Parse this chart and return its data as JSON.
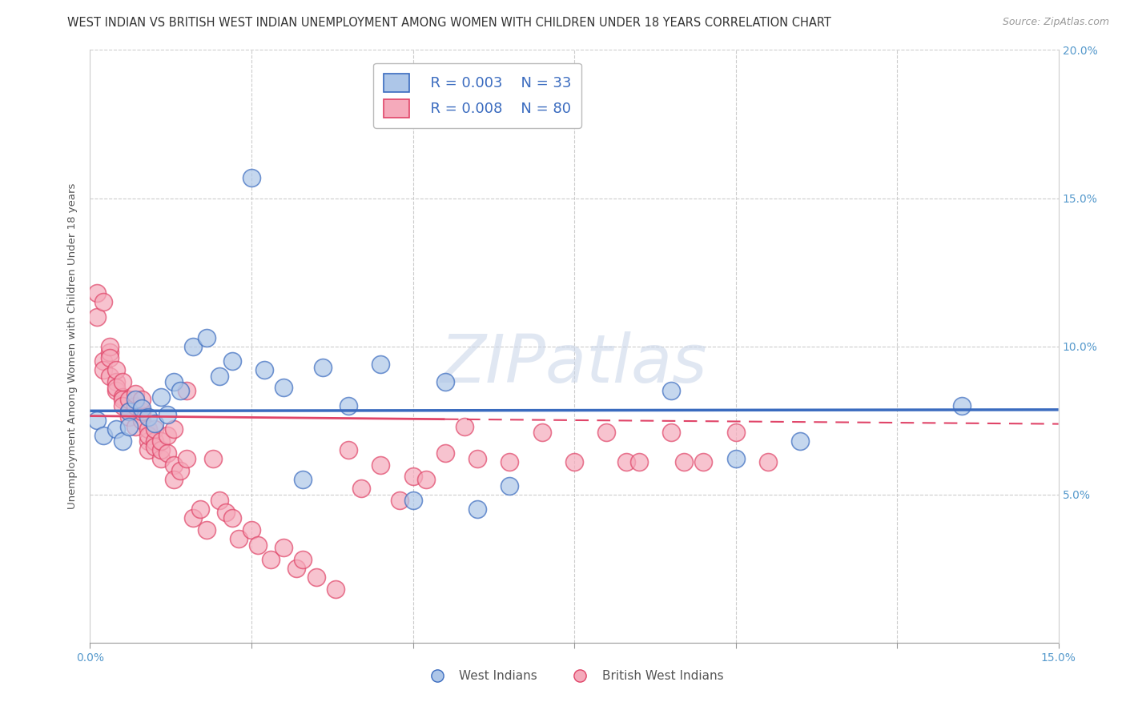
{
  "title": "WEST INDIAN VS BRITISH WEST INDIAN UNEMPLOYMENT AMONG WOMEN WITH CHILDREN UNDER 18 YEARS CORRELATION CHART",
  "source": "Source: ZipAtlas.com",
  "ylabel": "Unemployment Among Women with Children Under 18 years",
  "xlim": [
    0.0,
    0.15
  ],
  "ylim": [
    0.0,
    0.2
  ],
  "background_color": "#ffffff",
  "watermark_text": "ZIPatlas",
  "legend_r1": "R = 0.003",
  "legend_n1": "N = 33",
  "legend_r2": "R = 0.008",
  "legend_n2": "N = 80",
  "blue_fill": "#adc6e8",
  "pink_fill": "#f5aabb",
  "blue_edge": "#3a6bbf",
  "pink_edge": "#e04468",
  "grid_color": "#cccccc",
  "title_color": "#333333",
  "tick_color": "#5599cc",
  "ylabel_color": "#555555",
  "title_fontsize": 10.5,
  "axis_label_fontsize": 9.5,
  "tick_fontsize": 10,
  "legend_fontsize": 13,
  "watermark_fontsize": 60,
  "source_fontsize": 9,
  "wi_x": [
    0.001,
    0.002,
    0.004,
    0.005,
    0.006,
    0.006,
    0.007,
    0.008,
    0.009,
    0.01,
    0.011,
    0.012,
    0.013,
    0.014,
    0.016,
    0.018,
    0.02,
    0.022,
    0.025,
    0.027,
    0.03,
    0.033,
    0.036,
    0.04,
    0.045,
    0.05,
    0.055,
    0.06,
    0.065,
    0.09,
    0.1,
    0.11,
    0.135
  ],
  "wi_y": [
    0.075,
    0.07,
    0.072,
    0.068,
    0.078,
    0.073,
    0.082,
    0.079,
    0.076,
    0.074,
    0.083,
    0.077,
    0.088,
    0.085,
    0.1,
    0.103,
    0.09,
    0.095,
    0.157,
    0.092,
    0.086,
    0.055,
    0.093,
    0.08,
    0.094,
    0.048,
    0.088,
    0.045,
    0.053,
    0.085,
    0.062,
    0.068,
    0.08
  ],
  "bwi_x": [
    0.001,
    0.001,
    0.002,
    0.002,
    0.002,
    0.003,
    0.003,
    0.003,
    0.003,
    0.004,
    0.004,
    0.004,
    0.004,
    0.005,
    0.005,
    0.005,
    0.005,
    0.006,
    0.006,
    0.006,
    0.007,
    0.007,
    0.007,
    0.008,
    0.008,
    0.008,
    0.009,
    0.009,
    0.009,
    0.009,
    0.01,
    0.01,
    0.01,
    0.011,
    0.011,
    0.011,
    0.012,
    0.012,
    0.013,
    0.013,
    0.013,
    0.014,
    0.015,
    0.015,
    0.016,
    0.017,
    0.018,
    0.019,
    0.02,
    0.021,
    0.022,
    0.023,
    0.025,
    0.026,
    0.028,
    0.03,
    0.032,
    0.033,
    0.035,
    0.038,
    0.04,
    0.042,
    0.045,
    0.048,
    0.05,
    0.052,
    0.055,
    0.058,
    0.06,
    0.065,
    0.07,
    0.075,
    0.08,
    0.083,
    0.085,
    0.09,
    0.092,
    0.095,
    0.1,
    0.105
  ],
  "bwi_y": [
    0.118,
    0.11,
    0.115,
    0.095,
    0.092,
    0.098,
    0.1,
    0.096,
    0.09,
    0.088,
    0.085,
    0.092,
    0.086,
    0.083,
    0.082,
    0.08,
    0.088,
    0.078,
    0.082,
    0.076,
    0.08,
    0.084,
    0.073,
    0.075,
    0.078,
    0.082,
    0.068,
    0.072,
    0.065,
    0.07,
    0.068,
    0.072,
    0.066,
    0.062,
    0.065,
    0.068,
    0.064,
    0.07,
    0.06,
    0.072,
    0.055,
    0.058,
    0.085,
    0.062,
    0.042,
    0.045,
    0.038,
    0.062,
    0.048,
    0.044,
    0.042,
    0.035,
    0.038,
    0.033,
    0.028,
    0.032,
    0.025,
    0.028,
    0.022,
    0.018,
    0.065,
    0.052,
    0.06,
    0.048,
    0.056,
    0.055,
    0.064,
    0.073,
    0.062,
    0.061,
    0.071,
    0.061,
    0.071,
    0.061,
    0.061,
    0.071,
    0.061,
    0.061,
    0.071,
    0.061
  ]
}
